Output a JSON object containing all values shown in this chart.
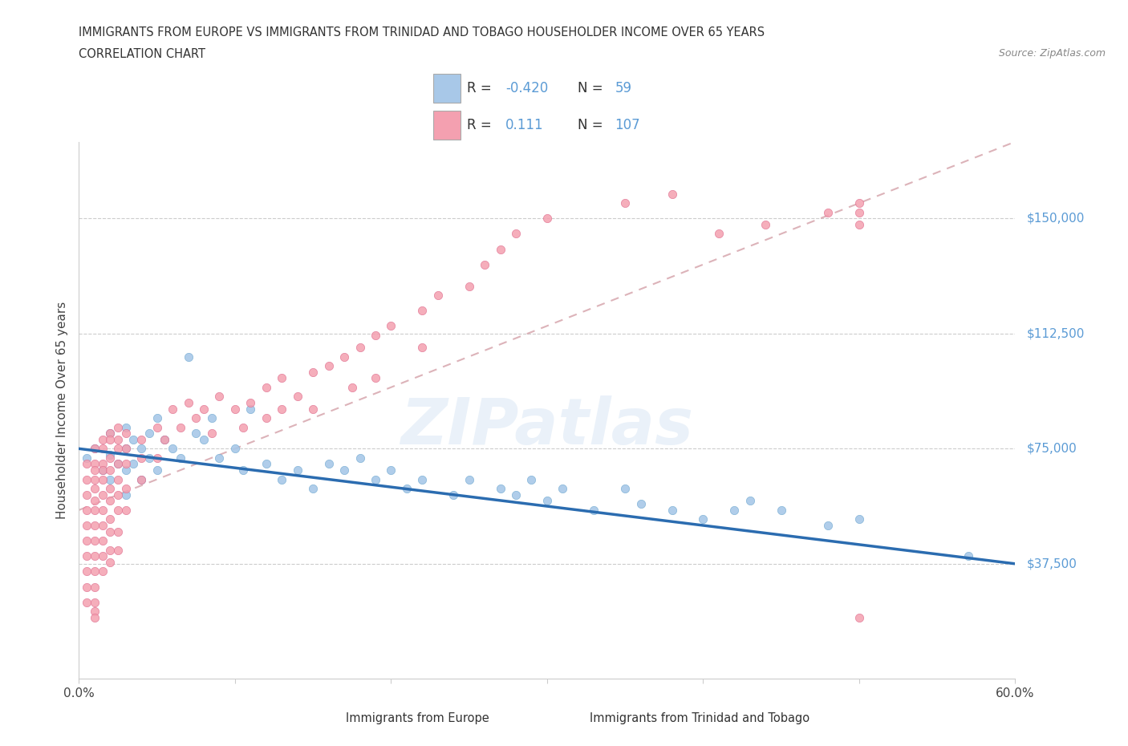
{
  "title_line1": "IMMIGRANTS FROM EUROPE VS IMMIGRANTS FROM TRINIDAD AND TOBAGO HOUSEHOLDER INCOME OVER 65 YEARS",
  "title_line2": "CORRELATION CHART",
  "source_text": "Source: ZipAtlas.com",
  "ylabel": "Householder Income Over 65 years",
  "xlim": [
    0.0,
    0.6
  ],
  "ylim": [
    0,
    175000
  ],
  "xticks": [
    0.0,
    0.1,
    0.2,
    0.3,
    0.4,
    0.5,
    0.6
  ],
  "ytick_labels": [
    "$37,500",
    "$75,000",
    "$112,500",
    "$150,000"
  ],
  "ytick_values": [
    37500,
    75000,
    112500,
    150000
  ],
  "europe_color": "#a8c8e8",
  "europe_edge_color": "#7aafd4",
  "trinidad_color": "#f4a0b0",
  "trinidad_edge_color": "#e07090",
  "europe_line_color": "#2b6cb0",
  "trinidad_line_color": "#d4a0a8",
  "label_color": "#5b9bd5",
  "watermark": "ZIPatlas",
  "europe_R": "-0.420",
  "europe_N": "59",
  "trinidad_R": "0.111",
  "trinidad_N": "107",
  "europe_scatter_x": [
    0.005,
    0.01,
    0.015,
    0.02,
    0.02,
    0.02,
    0.025,
    0.03,
    0.03,
    0.03,
    0.03,
    0.035,
    0.035,
    0.04,
    0.04,
    0.045,
    0.045,
    0.05,
    0.05,
    0.055,
    0.06,
    0.065,
    0.07,
    0.075,
    0.08,
    0.085,
    0.09,
    0.1,
    0.105,
    0.11,
    0.12,
    0.13,
    0.14,
    0.15,
    0.16,
    0.17,
    0.18,
    0.19,
    0.2,
    0.21,
    0.22,
    0.24,
    0.25,
    0.27,
    0.28,
    0.29,
    0.3,
    0.31,
    0.33,
    0.35,
    0.36,
    0.38,
    0.4,
    0.42,
    0.43,
    0.45,
    0.48,
    0.5,
    0.57
  ],
  "europe_scatter_y": [
    72000,
    75000,
    68000,
    80000,
    73000,
    65000,
    70000,
    82000,
    75000,
    68000,
    60000,
    78000,
    70000,
    75000,
    65000,
    80000,
    72000,
    85000,
    68000,
    78000,
    75000,
    72000,
    105000,
    80000,
    78000,
    85000,
    72000,
    75000,
    68000,
    88000,
    70000,
    65000,
    68000,
    62000,
    70000,
    68000,
    72000,
    65000,
    68000,
    62000,
    65000,
    60000,
    65000,
    62000,
    60000,
    65000,
    58000,
    62000,
    55000,
    62000,
    57000,
    55000,
    52000,
    55000,
    58000,
    55000,
    50000,
    52000,
    40000
  ],
  "trinidad_scatter_x": [
    0.005,
    0.005,
    0.005,
    0.005,
    0.005,
    0.005,
    0.005,
    0.005,
    0.005,
    0.005,
    0.01,
    0.01,
    0.01,
    0.01,
    0.01,
    0.01,
    0.01,
    0.01,
    0.01,
    0.01,
    0.01,
    0.01,
    0.01,
    0.01,
    0.01,
    0.015,
    0.015,
    0.015,
    0.015,
    0.015,
    0.015,
    0.015,
    0.015,
    0.015,
    0.015,
    0.015,
    0.02,
    0.02,
    0.02,
    0.02,
    0.02,
    0.02,
    0.02,
    0.02,
    0.02,
    0.02,
    0.025,
    0.025,
    0.025,
    0.025,
    0.025,
    0.025,
    0.025,
    0.025,
    0.025,
    0.03,
    0.03,
    0.03,
    0.03,
    0.03,
    0.04,
    0.04,
    0.04,
    0.05,
    0.05,
    0.055,
    0.06,
    0.065,
    0.07,
    0.075,
    0.08,
    0.085,
    0.09,
    0.1,
    0.105,
    0.11,
    0.12,
    0.12,
    0.13,
    0.13,
    0.14,
    0.15,
    0.15,
    0.16,
    0.17,
    0.175,
    0.18,
    0.19,
    0.19,
    0.2,
    0.22,
    0.22,
    0.23,
    0.25,
    0.26,
    0.27,
    0.28,
    0.3,
    0.35,
    0.38,
    0.41,
    0.44,
    0.48,
    0.5,
    0.5,
    0.5,
    0.5
  ],
  "trinidad_scatter_y": [
    70000,
    65000,
    60000,
    55000,
    50000,
    45000,
    40000,
    35000,
    30000,
    25000,
    75000,
    70000,
    68000,
    65000,
    62000,
    58000,
    55000,
    50000,
    45000,
    40000,
    35000,
    30000,
    25000,
    22000,
    20000,
    78000,
    75000,
    70000,
    68000,
    65000,
    60000,
    55000,
    50000,
    45000,
    40000,
    35000,
    80000,
    78000,
    72000,
    68000,
    62000,
    58000,
    52000,
    48000,
    42000,
    38000,
    82000,
    78000,
    75000,
    70000,
    65000,
    60000,
    55000,
    48000,
    42000,
    80000,
    75000,
    70000,
    62000,
    55000,
    78000,
    72000,
    65000,
    82000,
    72000,
    78000,
    88000,
    82000,
    90000,
    85000,
    88000,
    80000,
    92000,
    88000,
    82000,
    90000,
    95000,
    85000,
    98000,
    88000,
    92000,
    100000,
    88000,
    102000,
    105000,
    95000,
    108000,
    112000,
    98000,
    115000,
    120000,
    108000,
    125000,
    128000,
    135000,
    140000,
    145000,
    150000,
    155000,
    158000,
    145000,
    148000,
    152000,
    155000,
    148000,
    152000,
    20000
  ]
}
